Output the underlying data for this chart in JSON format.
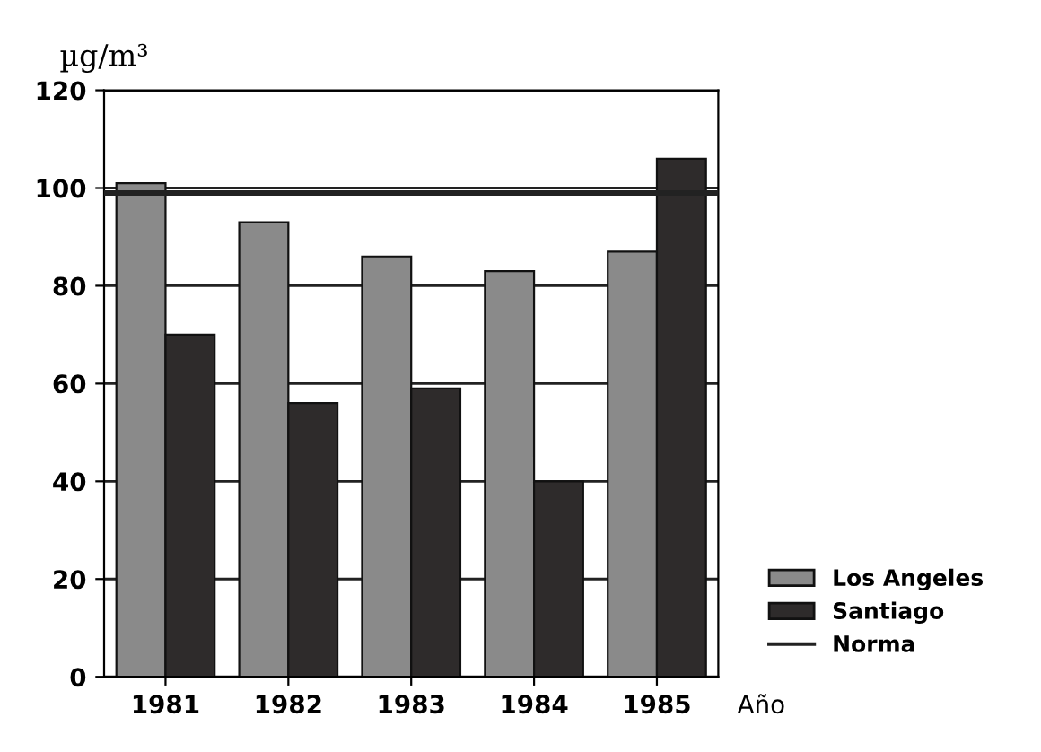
{
  "chart_data": {
    "type": "bar",
    "ylabel": "µg/m³",
    "xlabel": "Año",
    "categories": [
      "1981",
      "1982",
      "1983",
      "1984",
      "1985"
    ],
    "series": [
      {
        "name": "Los Angeles",
        "color": "#8a8a8a",
        "values": [
          101,
          93,
          86,
          83,
          87
        ]
      },
      {
        "name": "Santiago",
        "color": "#2e2b2b",
        "values": [
          70,
          56,
          59,
          40,
          106
        ]
      }
    ],
    "ref_lines": [
      {
        "axis": "y",
        "value": 99,
        "label": "Norma",
        "color": "#222222",
        "line_style": "solid"
      }
    ],
    "ylim": [
      0,
      120
    ],
    "yticks": [
      0,
      20,
      40,
      60,
      80,
      100,
      120
    ],
    "grid": "y",
    "legend": "bottom right"
  }
}
